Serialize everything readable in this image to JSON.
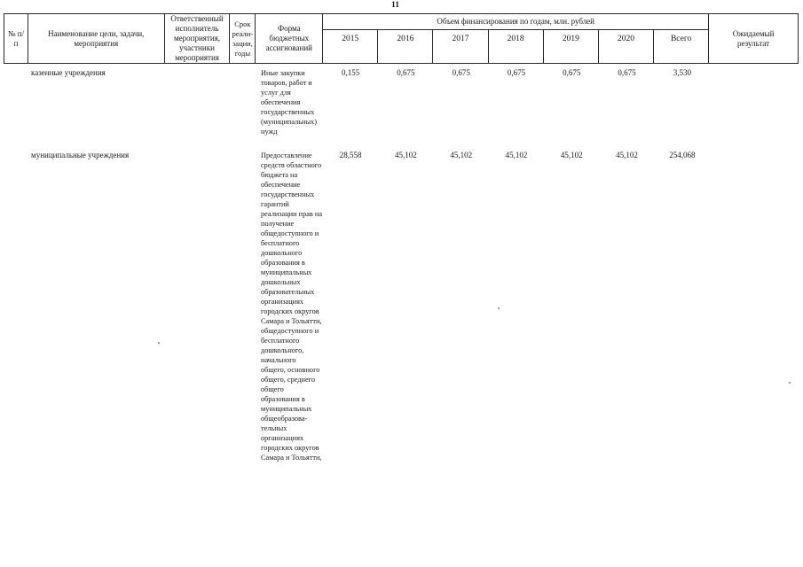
{
  "page": {
    "number": "11"
  },
  "table": {
    "header": {
      "num": "№ п/п",
      "name": "Наименование цели, задачи, мероприятия",
      "executor": "Ответственный исполнитель мероприятия, участники мероприятия",
      "term": "Срок реали- зации, годы",
      "form": "Форма бюджетных ассигнований",
      "finance_title": "Объем финансирования по годам, млн. рублей",
      "years": [
        "2015",
        "2016",
        "2017",
        "2018",
        "2019",
        "2020"
      ],
      "total_label": "Всего",
      "expected": "Ожидаемый результат"
    },
    "rows": [
      {
        "name": "казенные учреждения",
        "form": "Иные закупки товаров, работ и услуг для обеспечения государственных (муниципальных) нужд",
        "values": [
          "0,155",
          "0,675",
          "0,675",
          "0,675",
          "0,675",
          "0,675",
          "3,530"
        ]
      },
      {
        "name": "муниципальные учреждения",
        "form": "Предоставление средств областного бюджета на обеспечение государственных гарантий реализации прав на получение общедоступного и бесплатного дошкольного образования в муниципальных дошкольных образовательных организациях городских округов Самара и Тольятти, общедоступного и бесплатного дошкольного, начального общего, основного общего, среднего общего образования в муниципальных общеобразова- тельных организациях городских округов Самара и Тольятти,",
        "values": [
          "28,558",
          "45,102",
          "45,102",
          "45,102",
          "45,102",
          "45,102",
          "254,068"
        ]
      }
    ]
  }
}
